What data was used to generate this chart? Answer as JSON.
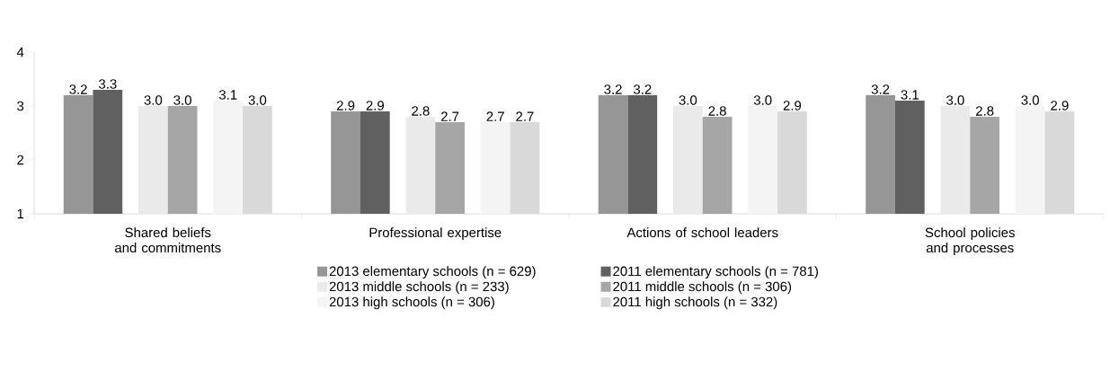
{
  "chart_data": {
    "type": "bar",
    "categories": [
      "Shared beliefs and commitments",
      "Professional expertise",
      "Actions of school leaders",
      "School policies and processes"
    ],
    "series": [
      {
        "name": "2013 elementary schools (n = 629)",
        "color": "#969696",
        "values": [
          3.2,
          2.9,
          3.2,
          3.2
        ],
        "value_labels": [
          "3.2",
          "2.9",
          "3.2",
          "3.2"
        ]
      },
      {
        "name": "2011 elementary schools (n = 781)",
        "color": "#606060",
        "values": [
          3.3,
          2.9,
          3.2,
          3.1
        ],
        "value_labels": [
          "3.3",
          "2.9",
          "3.2",
          "3.1"
        ]
      },
      {
        "name": "2013 middle schools (n = 233)",
        "color": "#eaeaea",
        "values": [
          3.0,
          2.8,
          3.0,
          3.0
        ],
        "value_labels": [
          "3.0",
          "2.8",
          "3.0",
          "3.0"
        ]
      },
      {
        "name": "2011 middle schools (n = 306)",
        "color": "#a6a6a6",
        "values": [
          3.0,
          2.7,
          2.8,
          2.8
        ],
        "value_labels": [
          "3.0",
          "2.7",
          "2.8",
          "2.8"
        ]
      },
      {
        "name": "2013 high schools (n = 306)",
        "color": "#f4f4f4",
        "values": [
          3.1,
          2.7,
          3.0,
          3.0
        ],
        "value_labels": [
          "3.1",
          "2.7",
          "3.0",
          "3.0"
        ]
      },
      {
        "name": "2011 high schools (n = 332)",
        "color": "#d9d9d9",
        "values": [
          3.0,
          2.7,
          2.9,
          2.9
        ],
        "value_labels": [
          "3.0",
          "2.7",
          "2.9",
          "2.9"
        ]
      }
    ],
    "ylim": [
      1,
      4
    ],
    "yticks": [
      1,
      2,
      3,
      4
    ],
    "grid": false,
    "legend": "bottom"
  }
}
